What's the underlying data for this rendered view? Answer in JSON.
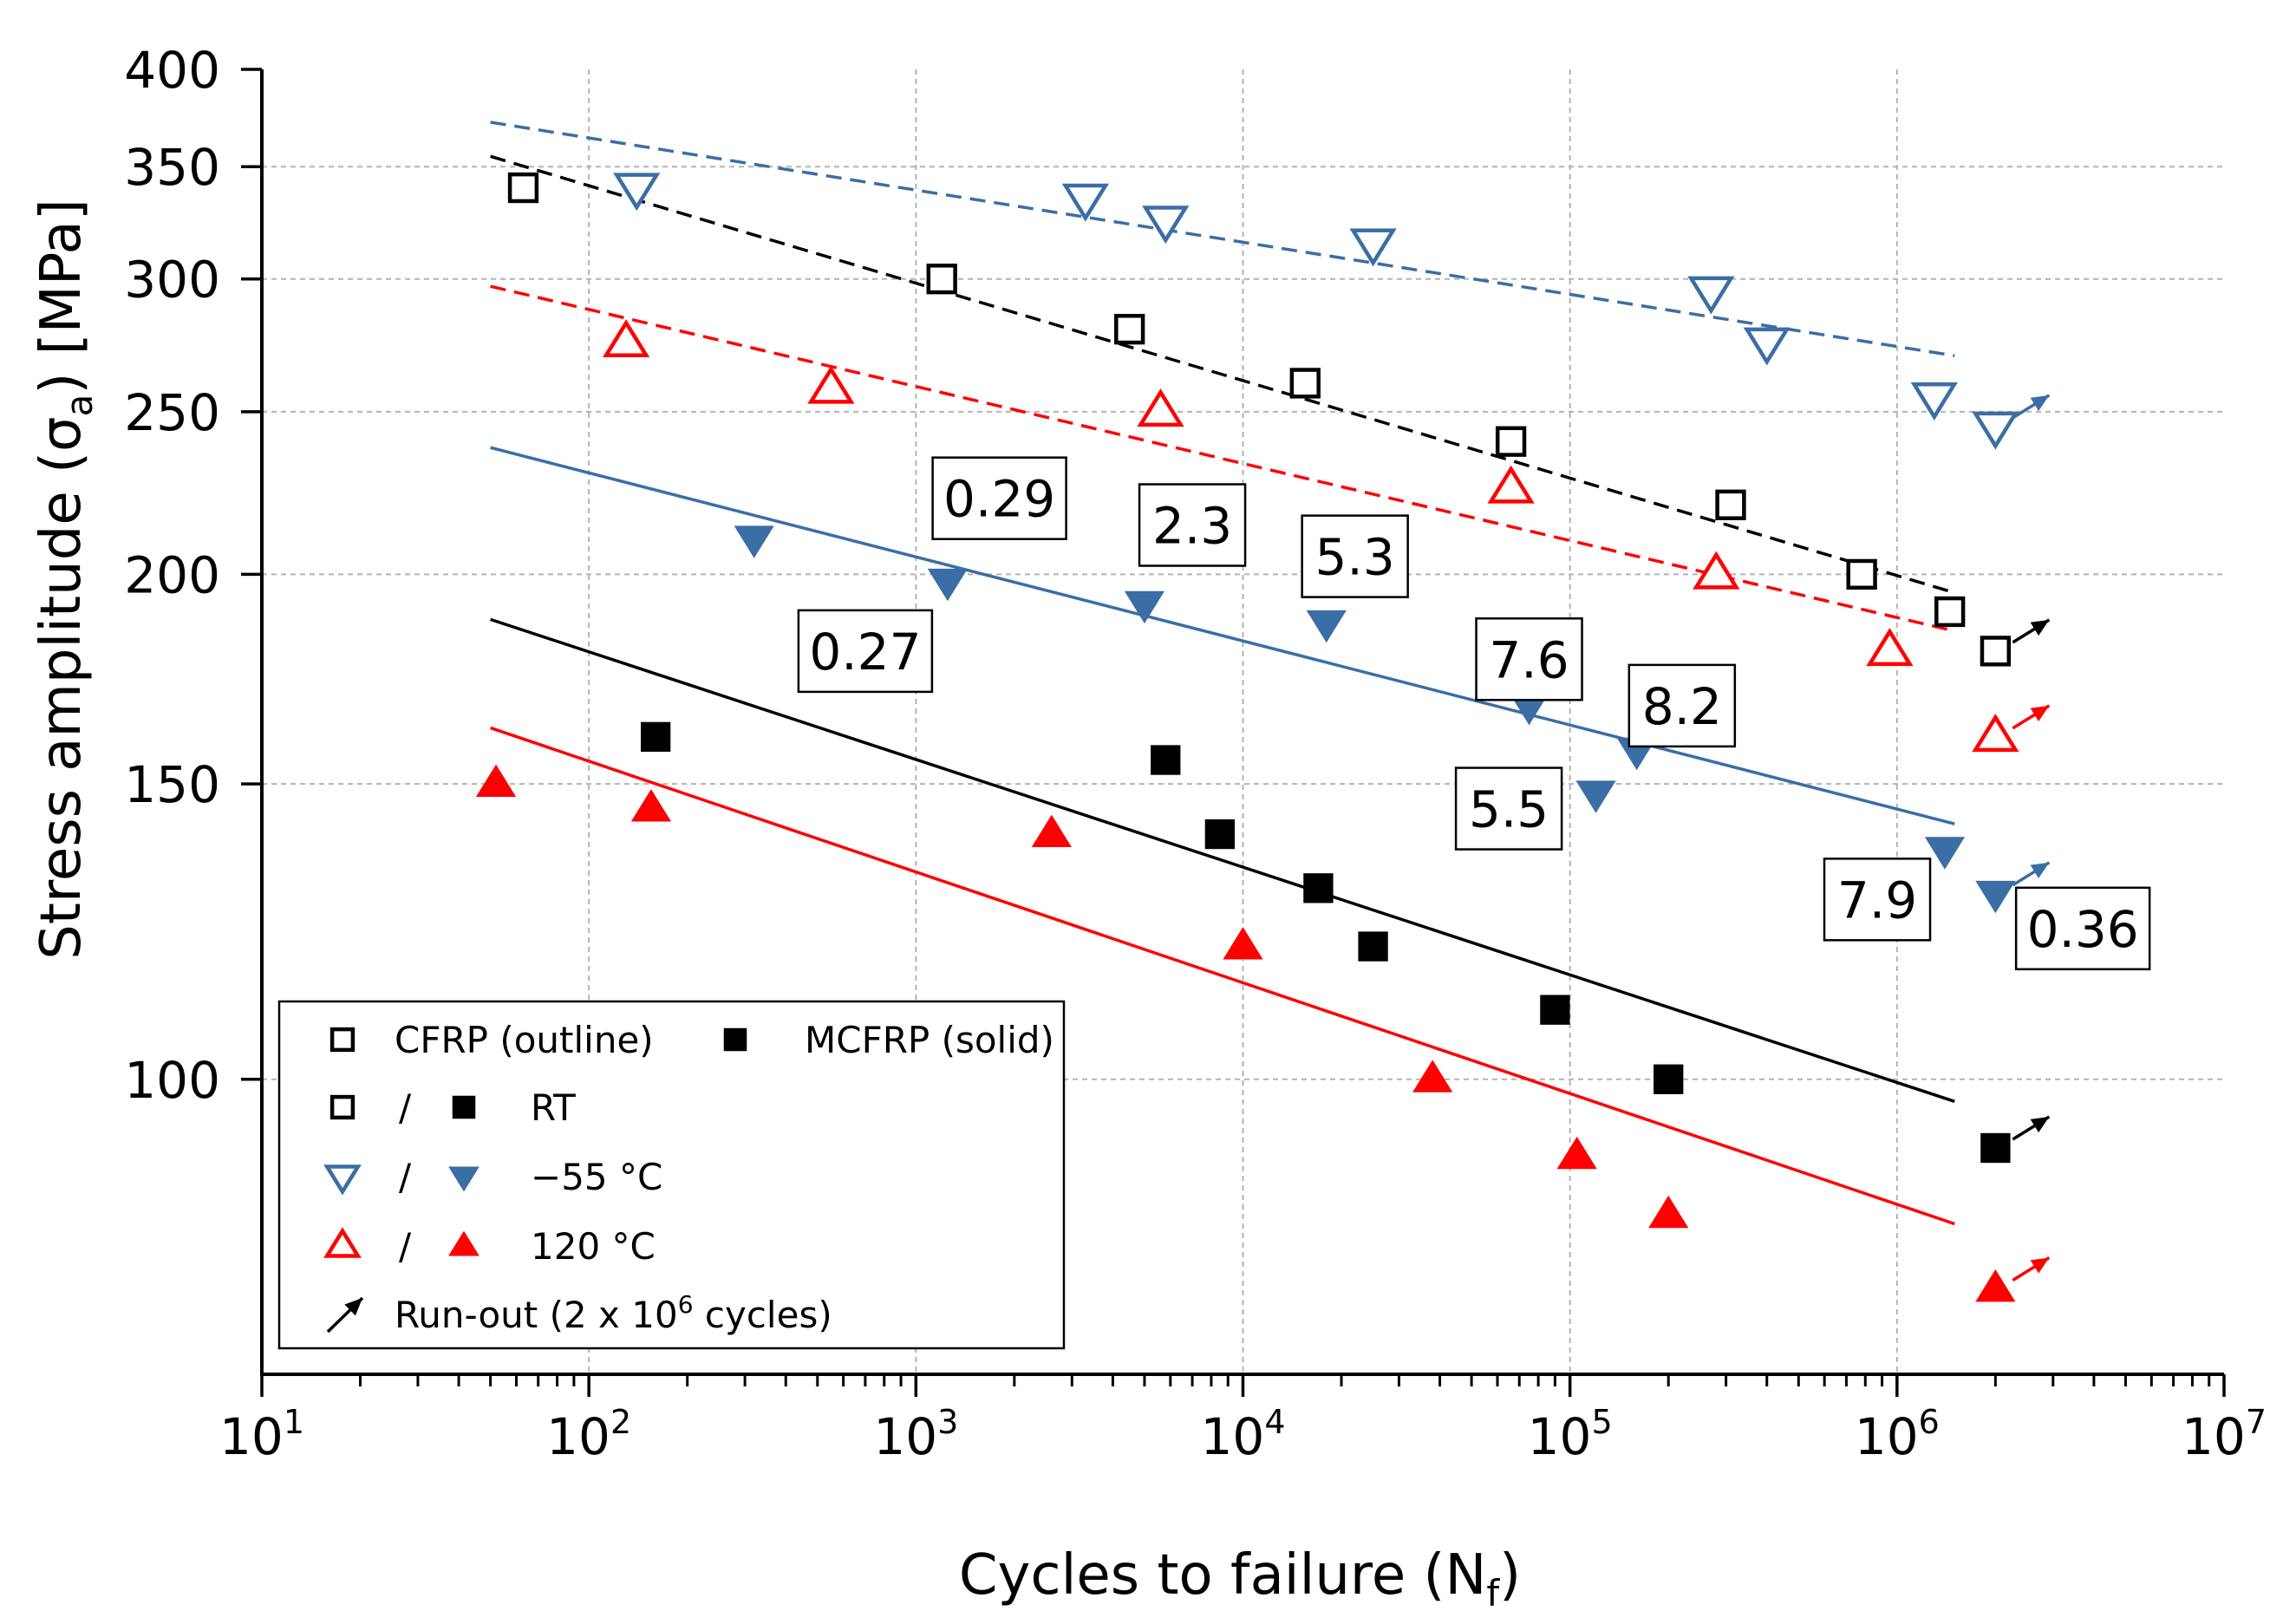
{
  "chart_data": {
    "type": "scatter",
    "title": "",
    "xlabel": "Cycles to failure (N",
    "xlabel_sub": "f",
    "xlabel_tail": ")",
    "ylabel": "Stress amplitude (σ",
    "ylabel_sub": "a",
    "ylabel_tail": ") [MPa]",
    "x_scale": "log",
    "y_scale": "log",
    "xlim": [
      10,
      10000000
    ],
    "ylim": [
      66.7,
      400
    ],
    "grid": true,
    "x_ticks": [
      {
        "value": 10,
        "base": "10",
        "exp": "1"
      },
      {
        "value": 100,
        "base": "10",
        "exp": "2"
      },
      {
        "value": 1000,
        "base": "10",
        "exp": "3"
      },
      {
        "value": 10000,
        "base": "10",
        "exp": "4"
      },
      {
        "value": 100000,
        "base": "10",
        "exp": "5"
      },
      {
        "value": 1000000,
        "base": "10",
        "exp": "6"
      },
      {
        "value": 10000000,
        "base": "10",
        "exp": "7"
      }
    ],
    "y_ticks": [
      {
        "value": 100,
        "label": "100"
      },
      {
        "value": 150,
        "label": "150"
      },
      {
        "value": 200,
        "label": "200"
      },
      {
        "value": 250,
        "label": "250"
      },
      {
        "value": 300,
        "label": "300"
      },
      {
        "value": 350,
        "label": "350"
      },
      {
        "value": 400,
        "label": "400"
      }
    ],
    "colors": {
      "black": "#000000",
      "blue": "#3a6ea5",
      "red": "#ff0000",
      "grid": "#b3b3b3"
    },
    "series": [
      {
        "name": "CFRP RT",
        "marker": "square",
        "fill": "none",
        "color": "#000000",
        "x": [
          63,
          1200,
          4500,
          15500,
          66000,
          310000,
          780000,
          1450000
        ],
        "y": [
          340,
          300,
          280,
          260,
          240,
          220,
          200,
          190
        ],
        "runout": {
          "x": 2000000,
          "y": 180
        }
      },
      {
        "name": "CFRP -55 °C",
        "marker": "triangle-down",
        "fill": "none",
        "color": "#3a6ea5",
        "x": [
          140,
          3300,
          5800,
          25000,
          270000,
          400000,
          1300000
        ],
        "y": [
          340,
          335,
          325,
          315,
          295,
          275,
          255
        ],
        "runout": {
          "x": 2000000,
          "y": 245
        }
      },
      {
        "name": "CFRP 120 °C",
        "marker": "triangle-up",
        "fill": "none",
        "color": "#ff0000",
        "x": [
          130,
          550,
          5600,
          66000,
          280000,
          950000
        ],
        "y": [
          275,
          258,
          250,
          225,
          200,
          180
        ],
        "runout": {
          "x": 2000000,
          "y": 160
        }
      },
      {
        "name": "MCFRP RT",
        "marker": "square",
        "fill": "solid",
        "color": "#000000",
        "x": [
          160,
          5800,
          8500,
          17000,
          25000,
          90000,
          200000
        ],
        "y": [
          160,
          155,
          140,
          130,
          120,
          110,
          100
        ],
        "runout": {
          "x": 2000000,
          "y": 91
        }
      },
      {
        "name": "MCFRP -55 °C",
        "marker": "triangle-down",
        "fill": "solid",
        "color": "#3a6ea5",
        "x": [
          320,
          1250,
          5000,
          18000,
          75000,
          120000,
          160000,
          1400000
        ],
        "y": [
          210,
          198,
          192,
          187,
          167,
          148,
          157,
          137
        ],
        "runout": {
          "x": 2000000,
          "y": 129
        }
      },
      {
        "name": "MCFRP 120 °C",
        "marker": "triangle-up",
        "fill": "solid",
        "color": "#ff0000",
        "x": [
          52,
          155,
          2600,
          10000,
          38000,
          105000,
          200000
        ],
        "y": [
          150,
          145,
          140,
          120,
          100,
          90,
          83
        ],
        "runout": {
          "x": 2000000,
          "y": 75
        }
      }
    ],
    "fit_lines": [
      {
        "name": "CFRP -55 °C fit",
        "style": "dashed",
        "color": "#3a6ea5",
        "x": [
          50,
          1500000
        ],
        "y": [
          372,
          270
        ]
      },
      {
        "name": "CFRP RT fit",
        "style": "dashed",
        "color": "#000000",
        "x": [
          50,
          1500000
        ],
        "y": [
          355,
          195
        ]
      },
      {
        "name": "CFRP 120 °C fit",
        "style": "dashed",
        "color": "#ff0000",
        "x": [
          50,
          1500000
        ],
        "y": [
          297,
          185
        ]
      },
      {
        "name": "MCFRP -55 °C fit",
        "style": "solid",
        "color": "#3a6ea5",
        "x": [
          50,
          1500000
        ],
        "y": [
          238,
          142
        ]
      },
      {
        "name": "MCFRP RT fit",
        "style": "solid",
        "color": "#000000",
        "x": [
          50,
          1500000
        ],
        "y": [
          188,
          97
        ]
      },
      {
        "name": "MCFRP 120 °C fit",
        "style": "solid",
        "color": "#ff0000",
        "x": [
          50,
          1500000
        ],
        "y": [
          162,
          82
        ]
      }
    ],
    "annotations": [
      {
        "text": "0.27",
        "x": 700,
        "y": 180
      },
      {
        "text": "0.29",
        "x": 1800,
        "y": 222
      },
      {
        "text": "2.3",
        "x": 7000,
        "y": 214
      },
      {
        "text": "5.3",
        "x": 22000,
        "y": 205
      },
      {
        "text": "7.6",
        "x": 75000,
        "y": 178
      },
      {
        "text": "8.2",
        "x": 220000,
        "y": 167
      },
      {
        "text": "5.5",
        "x": 65000,
        "y": 145
      },
      {
        "text": "7.9",
        "x": 870000,
        "y": 128
      },
      {
        "text": "0.36",
        "x": 3700000,
        "y": 123
      }
    ],
    "legend": {
      "position": "bottom-left",
      "rows": [
        {
          "open_marker": "square",
          "open_color": "#000000",
          "label1": "CFRP (outline)",
          "solid_marker": "square",
          "solid_color": "#000000",
          "label2": "MCFRP (solid)"
        },
        {
          "open_marker": "square",
          "open_color": "#000000",
          "separator": "/",
          "solid_marker": "square",
          "solid_color": "#000000",
          "label": "RT"
        },
        {
          "open_marker": "triangle-down",
          "open_color": "#3a6ea5",
          "separator": "/",
          "solid_marker": "triangle-down",
          "solid_color": "#3a6ea5",
          "label": "−55 °C"
        },
        {
          "open_marker": "triangle-up",
          "open_color": "#ff0000",
          "separator": "/",
          "solid_marker": "triangle-up",
          "solid_color": "#ff0000",
          "label": "120 °C"
        }
      ],
      "runout": {
        "label": "Run-out (2 x 10",
        "exp": "6",
        "label_tail": " cycles)"
      }
    }
  }
}
